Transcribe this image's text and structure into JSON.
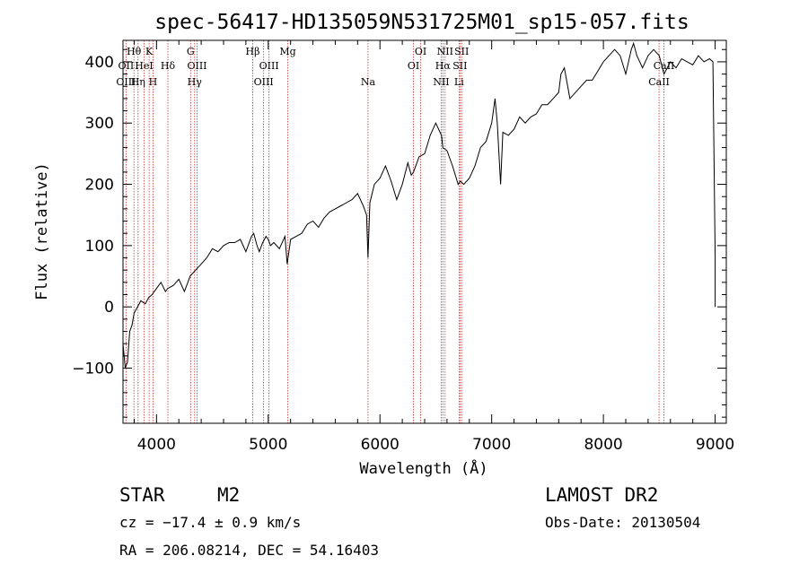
{
  "chart_data": {
    "type": "line",
    "title": "spec-56417-HD135059N531725M01_sp15-057.fits",
    "xlabel": "Wavelength (Å)",
    "ylabel": "Flux (relative)",
    "xlim": [
      3700,
      9100
    ],
    "ylim": [
      -190,
      435
    ],
    "xticks": [
      4000,
      5000,
      6000,
      7000,
      8000,
      9000
    ],
    "yticks": [
      -100,
      0,
      100,
      200,
      300,
      400
    ],
    "xtick_labels": [
      "4000",
      "5000",
      "6000",
      "7000",
      "8000",
      "9000"
    ],
    "ytick_labels": [
      "−100",
      "0",
      "100",
      "200",
      "300",
      "400"
    ],
    "series": [
      {
        "x": [
          3700,
          3720,
          3740,
          3760,
          3780,
          3800,
          3830,
          3860,
          3900,
          3930,
          3960,
          4000,
          4040,
          4080,
          4100,
          4150,
          4200,
          4250,
          4280,
          4300,
          4350,
          4400,
          4450,
          4500,
          4550,
          4600,
          4650,
          4700,
          4750,
          4800,
          4850,
          4870,
          4900,
          4920,
          4950,
          4980,
          5000,
          5020,
          5050,
          5100,
          5150,
          5170,
          5200,
          5250,
          5300,
          5350,
          5400,
          5450,
          5500,
          5550,
          5600,
          5650,
          5700,
          5750,
          5800,
          5850,
          5880,
          5893,
          5910,
          5950,
          6000,
          6050,
          6100,
          6150,
          6200,
          6250,
          6280,
          6300,
          6350,
          6400,
          6450,
          6500,
          6550,
          6563,
          6600,
          6650,
          6700,
          6720,
          6750,
          6800,
          6850,
          6900,
          6950,
          7000,
          7030,
          7050,
          7080,
          7100,
          7150,
          7200,
          7250,
          7300,
          7350,
          7400,
          7450,
          7500,
          7550,
          7600,
          7620,
          7650,
          7700,
          7750,
          7800,
          7850,
          7900,
          7950,
          8000,
          8050,
          8100,
          8150,
          8200,
          8250,
          8270,
          8300,
          8350,
          8400,
          8450,
          8500,
          8542,
          8600,
          8650,
          8700,
          8750,
          8800,
          8850,
          8900,
          8950,
          8980,
          9000,
          9000
        ],
        "y": [
          -60,
          -100,
          -90,
          -40,
          -30,
          -10,
          0,
          10,
          5,
          15,
          20,
          30,
          40,
          25,
          30,
          35,
          45,
          25,
          40,
          50,
          60,
          70,
          80,
          95,
          90,
          100,
          105,
          105,
          110,
          90,
          115,
          120,
          100,
          90,
          105,
          115,
          110,
          100,
          105,
          95,
          115,
          70,
          110,
          115,
          120,
          135,
          140,
          130,
          145,
          155,
          160,
          165,
          170,
          175,
          185,
          165,
          150,
          80,
          170,
          200,
          210,
          230,
          205,
          175,
          200,
          235,
          215,
          220,
          245,
          250,
          280,
          300,
          280,
          260,
          255,
          230,
          200,
          205,
          200,
          210,
          230,
          260,
          270,
          300,
          340,
          300,
          200,
          285,
          280,
          290,
          310,
          300,
          310,
          315,
          330,
          330,
          340,
          350,
          380,
          390,
          340,
          350,
          360,
          370,
          370,
          385,
          400,
          410,
          420,
          410,
          380,
          420,
          430,
          410,
          390,
          410,
          420,
          410,
          380,
          400,
          390,
          405,
          400,
          395,
          410,
          400,
          405,
          400,
          80,
          0
        ]
      }
    ],
    "annotations": [
      {
        "label": "Hθ",
        "x": 3798,
        "row": 1
      },
      {
        "label": "OII",
        "x": 3727,
        "row": 2
      },
      {
        "label": "OIII",
        "x": 3727,
        "row": 3
      },
      {
        "label": "K",
        "x": 3934,
        "row": 1
      },
      {
        "label": "HeI",
        "x": 3889,
        "row": 2
      },
      {
        "label": "Hη",
        "x": 3835,
        "row": 3
      },
      {
        "label": "H",
        "x": 3969,
        "row": 3
      },
      {
        "label": "Hδ",
        "x": 4102,
        "row": 2
      },
      {
        "label": "G",
        "x": 4305,
        "row": 1
      },
      {
        "label": "OIII",
        "x": 4363,
        "row": 2
      },
      {
        "label": "Hγ",
        "x": 4341,
        "row": 3
      },
      {
        "label": "Hβ",
        "x": 4861,
        "row": 1
      },
      {
        "label": "OIII",
        "x": 5007,
        "row": 2
      },
      {
        "label": "OIII",
        "x": 4959,
        "row": 3
      },
      {
        "label": "Mg",
        "x": 5175,
        "row": 1
      },
      {
        "label": "Na",
        "x": 5893,
        "row": 3
      },
      {
        "label": "OI",
        "x": 6364,
        "row": 1
      },
      {
        "label": "OI",
        "x": 6300,
        "row": 2
      },
      {
        "label": "NII",
        "x": 6583,
        "row": 1
      },
      {
        "label": "Hα",
        "x": 6563,
        "row": 2
      },
      {
        "label": "NII",
        "x": 6548,
        "row": 3
      },
      {
        "label": "SII",
        "x": 6731,
        "row": 1
      },
      {
        "label": "SII",
        "x": 6716,
        "row": 2
      },
      {
        "label": "Li",
        "x": 6708,
        "row": 3
      },
      {
        "label": "CaII",
        "x": 8542,
        "row": 2
      },
      {
        "label": "CaII",
        "x": 8498,
        "row": 3
      }
    ],
    "line_markers": [
      3727,
      3798,
      3835,
      3889,
      3934,
      3969,
      4102,
      4305,
      4341,
      4363,
      4861,
      4959,
      5007,
      5175,
      5893,
      6300,
      6364,
      6548,
      6563,
      6583,
      6708,
      6716,
      6731,
      8498,
      8542
    ],
    "grid": false,
    "legend": "none",
    "colors": {
      "spectrum": "#000000",
      "markers": "#cc3333",
      "axes": "#000000"
    }
  },
  "info": {
    "class": "STAR",
    "subclass": "M2",
    "survey": "LAMOST DR2",
    "redshift": "cz = −17.4 ± 0.9 km/s",
    "obsdate": "Obs-Date: 20130504",
    "coords": "RA = 206.08214, DEC =  54.16403"
  }
}
